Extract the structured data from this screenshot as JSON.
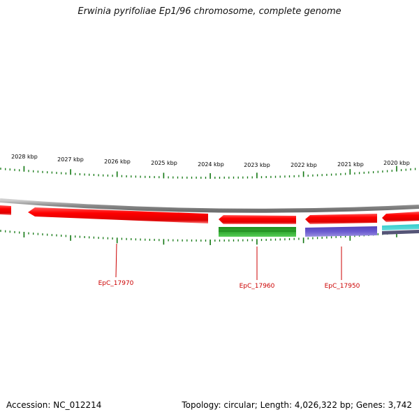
{
  "title": "Erwinia pyrifoliae Ep1/96 chromosome, complete genome",
  "footer": {
    "accession": "Accession: NC_012214",
    "summary": "Topology: circular; Length: 4,026,322 bp; Genes: 3,742"
  },
  "scale_labels": [
    "2028 kbp",
    "2027 kbp",
    "2026 kbp",
    "2025 kbp",
    "2024 kbp",
    "2023 kbp",
    "2022 kbp",
    "2021 kbp",
    "2020 kbp"
  ],
  "locus_labels": [
    "EpC_17970",
    "EpC_17960",
    "EpC_17950"
  ],
  "colors": {
    "cds": "#ff0000",
    "rrna": "#22aa22",
    "feature_blue": "#6655cc",
    "feature_cyan": "#22bbcc",
    "ticks": "#117711",
    "backbone": "#888888",
    "locus_text": "#cc0000"
  }
}
